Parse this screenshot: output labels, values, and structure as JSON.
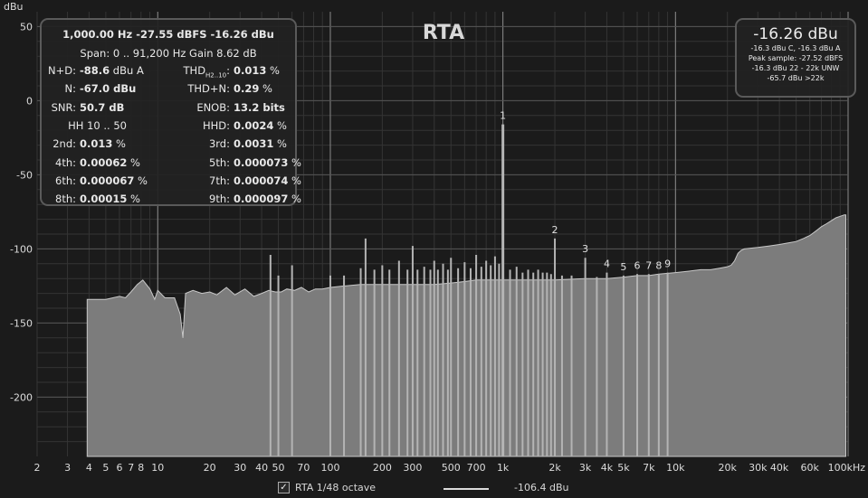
{
  "title": "RTA",
  "y_unit": "dBu",
  "stats": {
    "header1": "1,000.00 Hz  -27.55 dBFS  -16.26 dBu",
    "header2": "Span: 0 .. 91,200 Hz   Gain 8.62 dB",
    "rows": [
      {
        "l_label": "N+D:",
        "l_value": "-88.6",
        "l_unit": " dBu A",
        "r_label": "THD",
        "r_sub": "H2..10",
        "r_label_tail": ":",
        "r_value": "0.013",
        "r_unit": " %"
      },
      {
        "l_label": "N:",
        "l_value": "-67.0 dBu",
        "l_unit": "",
        "r_label": "THD+N:",
        "r_sub": "",
        "r_label_tail": "",
        "r_value": "0.29",
        "r_unit": " %"
      },
      {
        "l_label": "SNR:",
        "l_value": "50.7 dB",
        "l_unit": "",
        "r_label": "ENOB:",
        "r_sub": "",
        "r_label_tail": "",
        "r_value": "13.2 bits",
        "r_unit": ""
      },
      {
        "l_label": "HH 10 .. 50",
        "l_value": "",
        "l_unit": "",
        "r_label": "HHD:",
        "r_sub": "",
        "r_label_tail": "",
        "r_value": "0.0024",
        "r_unit": " %"
      },
      {
        "l_label": "2nd:",
        "l_value": "0.013",
        "l_unit": " %",
        "r_label": "3rd:",
        "r_sub": "",
        "r_label_tail": "",
        "r_value": "0.0031",
        "r_unit": " %"
      },
      {
        "l_label": "4th:",
        "l_value": "0.00062",
        "l_unit": " %",
        "r_label": "5th:",
        "r_sub": "",
        "r_label_tail": "",
        "r_value": "0.000073",
        "r_unit": " %"
      },
      {
        "l_label": "6th:",
        "l_value": "0.000067",
        "l_unit": " %",
        "r_label": "7th:",
        "r_sub": "",
        "r_label_tail": "",
        "r_value": "0.000074",
        "r_unit": " %"
      },
      {
        "l_label": "8th:",
        "l_value": "0.00015",
        "l_unit": " %",
        "r_label": "9th:",
        "r_sub": "",
        "r_label_tail": "",
        "r_value": "0.000097",
        "r_unit": " %"
      }
    ]
  },
  "level": {
    "main": "-16.26 dBu",
    "lines": [
      "-16.3 dBu C, -16.3 dBu A",
      "Peak sample: -27.52 dBFS",
      "-16.3 dBu 22 - 22k UNW",
      "-65.7 dBu >22k"
    ]
  },
  "legend": {
    "checkbox_mark": "✓",
    "series_label": "RTA 1/48 octave",
    "level_text": "-106.4 dBu"
  },
  "colors": {
    "background": "#1b1b1b",
    "fill": "#7c7c7c",
    "trace": "#c8c8c8",
    "grid_major": "#8a8a8a",
    "grid_minor": "#343434"
  },
  "chart_data": {
    "type": "area",
    "x_scale": "log",
    "xlim": [
      2,
      100000
    ],
    "ylim": [
      -240,
      60
    ],
    "ylabel": "dBu",
    "y_ticks": [
      50,
      0,
      -50,
      -100,
      -150,
      -200
    ],
    "x_tick_labels": [
      {
        "f": 2,
        "t": "2"
      },
      {
        "f": 3,
        "t": "3"
      },
      {
        "f": 4,
        "t": "4"
      },
      {
        "f": 5,
        "t": "5"
      },
      {
        "f": 6,
        "t": "6"
      },
      {
        "f": 7,
        "t": "7"
      },
      {
        "f": 8,
        "t": "8"
      },
      {
        "f": 10,
        "t": "10"
      },
      {
        "f": 20,
        "t": "20"
      },
      {
        "f": 30,
        "t": "30"
      },
      {
        "f": 40,
        "t": "40"
      },
      {
        "f": 50,
        "t": "50"
      },
      {
        "f": 70,
        "t": "70"
      },
      {
        "f": 100,
        "t": "100"
      },
      {
        "f": 200,
        "t": "200"
      },
      {
        "f": 300,
        "t": "300"
      },
      {
        "f": 500,
        "t": "500"
      },
      {
        "f": 700,
        "t": "700"
      },
      {
        "f": 1000,
        "t": "1k"
      },
      {
        "f": 2000,
        "t": "2k"
      },
      {
        "f": 3000,
        "t": "3k"
      },
      {
        "f": 4000,
        "t": "4k"
      },
      {
        "f": 5000,
        "t": "5k"
      },
      {
        "f": 7000,
        "t": "7k"
      },
      {
        "f": 10000,
        "t": "10k"
      },
      {
        "f": 20000,
        "t": "20k"
      },
      {
        "f": 30000,
        "t": "30k"
      },
      {
        "f": 40000,
        "t": "40k"
      },
      {
        "f": 60000,
        "t": "60k"
      },
      {
        "f": 100000,
        "t": "100kHz"
      }
    ],
    "series": [
      {
        "spectrum": [
          [
            3.9,
            -240
          ],
          [
            3.9,
            -134
          ],
          [
            5.0,
            -134
          ],
          [
            5.5,
            -133
          ],
          [
            6.0,
            -132
          ],
          [
            6.5,
            -133
          ],
          [
            7.0,
            -129
          ],
          [
            7.6,
            -124
          ],
          [
            8.2,
            -121
          ],
          [
            9.0,
            -127
          ],
          [
            9.6,
            -134
          ],
          [
            10,
            -128
          ],
          [
            11,
            -133
          ],
          [
            12.5,
            -133
          ],
          [
            13.5,
            -144
          ],
          [
            14.0,
            -160
          ],
          [
            14.5,
            -130
          ],
          [
            16,
            -128
          ],
          [
            18,
            -130
          ],
          [
            20,
            -129
          ],
          [
            22,
            -131
          ],
          [
            25,
            -126
          ],
          [
            28,
            -131
          ],
          [
            32,
            -127
          ],
          [
            36,
            -132
          ],
          [
            40,
            -130
          ],
          [
            44,
            -128
          ],
          [
            48,
            -129
          ],
          [
            52,
            -129
          ],
          [
            56,
            -127
          ],
          [
            62,
            -128
          ],
          [
            68,
            -126
          ],
          [
            75,
            -129
          ],
          [
            82,
            -127
          ],
          [
            90,
            -127
          ],
          [
            100,
            -126
          ],
          [
            120,
            -125
          ],
          [
            150,
            -124
          ],
          [
            200,
            -124
          ],
          [
            250,
            -124
          ],
          [
            300,
            -124
          ],
          [
            400,
            -124
          ],
          [
            500,
            -123
          ],
          [
            600,
            -122
          ],
          [
            700,
            -121
          ],
          [
            800,
            -121
          ],
          [
            900,
            -121
          ],
          [
            1000,
            -121
          ],
          [
            1500,
            -121
          ],
          [
            2000,
            -121
          ],
          [
            3000,
            -120
          ],
          [
            4000,
            -120
          ],
          [
            5000,
            -119
          ],
          [
            6000,
            -118
          ],
          [
            7000,
            -118
          ],
          [
            8000,
            -117
          ],
          [
            10000,
            -116
          ],
          [
            12000,
            -115
          ],
          [
            14000,
            -114
          ],
          [
            16000,
            -114
          ],
          [
            18000,
            -113
          ],
          [
            20000,
            -112
          ],
          [
            21000,
            -111
          ],
          [
            22000,
            -108
          ],
          [
            23000,
            -103
          ],
          [
            24000,
            -101
          ],
          [
            25000,
            -100
          ],
          [
            30000,
            -99
          ],
          [
            35000,
            -98
          ],
          [
            40000,
            -97
          ],
          [
            45000,
            -96
          ],
          [
            50000,
            -95
          ],
          [
            55000,
            -93
          ],
          [
            60000,
            -91
          ],
          [
            65000,
            -88
          ],
          [
            70000,
            -85
          ],
          [
            75000,
            -83
          ],
          [
            80000,
            -81
          ],
          [
            85000,
            -79
          ],
          [
            90000,
            -78
          ],
          [
            95000,
            -77
          ],
          [
            97000,
            -77
          ],
          [
            97000,
            -240
          ]
        ],
        "peaks": [
          [
            45,
            -104
          ],
          [
            50,
            -118
          ],
          [
            60,
            -111
          ],
          [
            100,
            -118
          ],
          [
            120,
            -118
          ],
          [
            150,
            -113
          ],
          [
            160,
            -93
          ],
          [
            180,
            -114
          ],
          [
            200,
            -111
          ],
          [
            220,
            -114
          ],
          [
            250,
            -108
          ],
          [
            280,
            -114
          ],
          [
            300,
            -98
          ],
          [
            320,
            -114
          ],
          [
            350,
            -112
          ],
          [
            380,
            -114
          ],
          [
            400,
            -108
          ],
          [
            420,
            -114
          ],
          [
            450,
            -110
          ],
          [
            480,
            -114
          ],
          [
            500,
            -106
          ],
          [
            550,
            -113
          ],
          [
            600,
            -109
          ],
          [
            650,
            -113
          ],
          [
            700,
            -104
          ],
          [
            750,
            -112
          ],
          [
            800,
            -108
          ],
          [
            850,
            -111
          ],
          [
            900,
            -105
          ],
          [
            950,
            -110
          ],
          [
            1000,
            -16
          ],
          [
            1100,
            -114
          ],
          [
            1200,
            -112
          ],
          [
            1300,
            -116
          ],
          [
            1400,
            -114
          ],
          [
            1500,
            -116
          ],
          [
            1600,
            -114
          ],
          [
            1700,
            -116
          ],
          [
            1800,
            -116
          ],
          [
            1900,
            -117
          ],
          [
            2000,
            -93
          ],
          [
            2200,
            -118
          ],
          [
            2500,
            -118
          ],
          [
            3000,
            -106
          ],
          [
            3500,
            -119
          ],
          [
            4000,
            -116
          ],
          [
            5000,
            -118
          ],
          [
            6000,
            -117
          ],
          [
            7000,
            -117
          ],
          [
            8000,
            -117
          ],
          [
            9000,
            -116
          ]
        ]
      }
    ],
    "harmonic_markers": [
      {
        "label": "1",
        "f": 1000,
        "db": -16
      },
      {
        "label": "2",
        "f": 2000,
        "db": -93
      },
      {
        "label": "3",
        "f": 3000,
        "db": -106
      },
      {
        "label": "4",
        "f": 4000,
        "db": -116
      },
      {
        "label": "5",
        "f": 5000,
        "db": -118
      },
      {
        "label": "6",
        "f": 6000,
        "db": -117
      },
      {
        "label": "7",
        "f": 7000,
        "db": -117
      },
      {
        "label": "8",
        "f": 8000,
        "db": -117
      },
      {
        "label": "9",
        "f": 9000,
        "db": -116
      }
    ]
  }
}
